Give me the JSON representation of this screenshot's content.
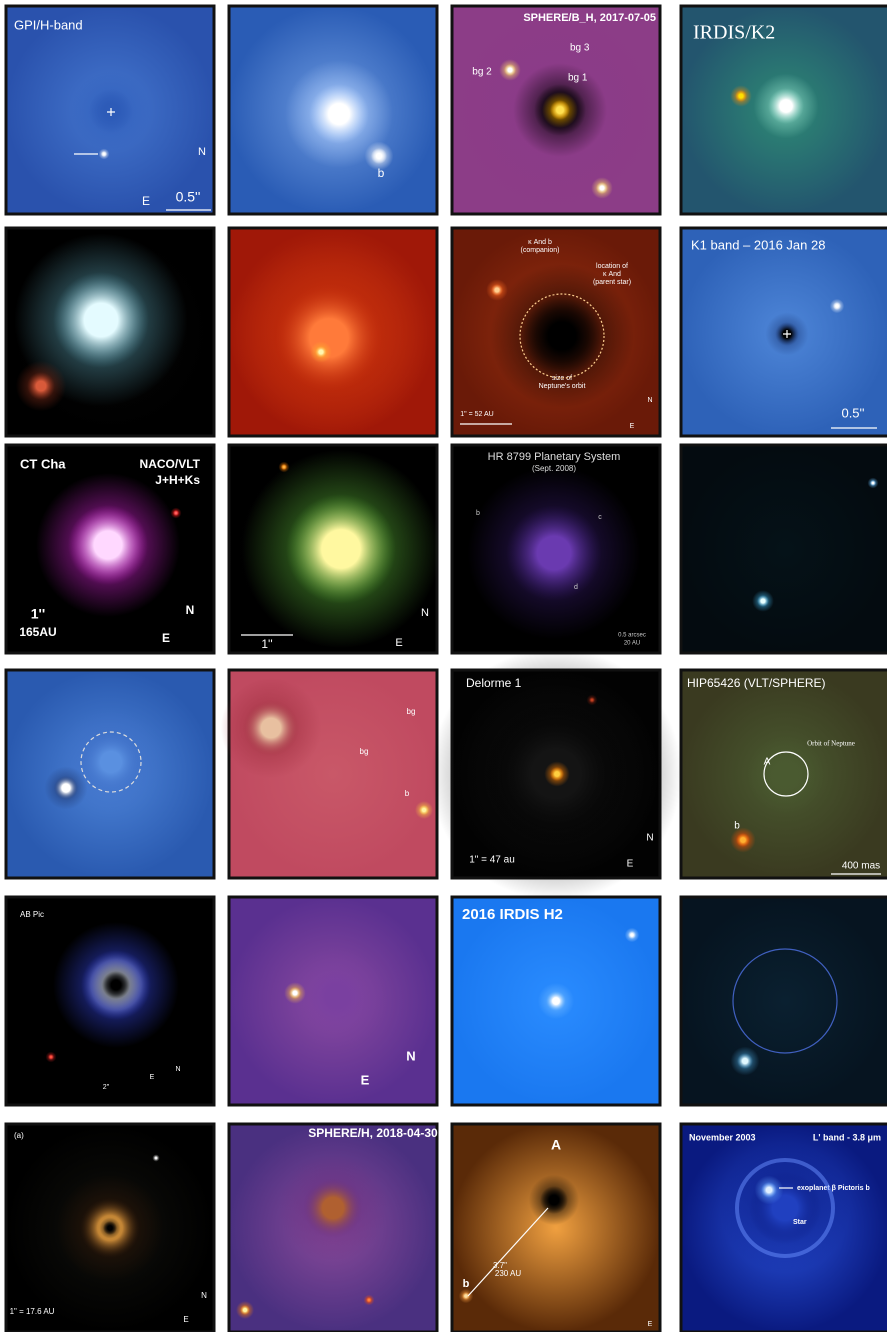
{
  "tiles": [
    {
      "labels": [
        "GPI/H-band",
        "N",
        "E",
        "0.5''"
      ]
    },
    {
      "labels": [
        "b"
      ]
    },
    {
      "labels": [
        "SPHERE/B_H, 2017-07-05",
        "bg 3",
        "bg 2",
        "bg 1"
      ]
    },
    {
      "labels": [
        "IRDIS/K2"
      ]
    },
    {
      "labels": []
    },
    {
      "labels": []
    },
    {
      "labels": [
        "κ And b",
        "(companion)",
        "location of",
        "κ And",
        "(parent star)",
        "size of",
        "Neptune's orbit",
        "1\" = 52 AU",
        "N",
        "E"
      ]
    },
    {
      "labels": [
        "K1 band – 2016 Jan 28",
        "0.5''"
      ]
    },
    {
      "labels": [
        "CT Cha",
        "NACO/VLT",
        "J+H+Ks",
        "1''",
        "165AU",
        "N",
        "E"
      ]
    },
    {
      "labels": [
        "1''",
        "N",
        "E"
      ]
    },
    {
      "labels": [
        "HR 8799 Planetary System",
        "(Sept. 2008)",
        "b",
        "c",
        "d",
        "0.5 arcsec",
        "20 AU"
      ]
    },
    {
      "labels": []
    },
    {
      "labels": []
    },
    {
      "labels": [
        "bg",
        "bg",
        "b"
      ]
    },
    {
      "labels": [
        "Delorme 1",
        "1\" = 47 au",
        "N",
        "E"
      ]
    },
    {
      "labels": [
        "HIP65426 (VLT/SPHERE)",
        "Orbit of Neptune",
        "A",
        "b",
        "400 mas"
      ]
    },
    {
      "labels": [
        "AB Pic",
        "2\"",
        "E",
        "N"
      ]
    },
    {
      "labels": [
        "N",
        "E"
      ]
    },
    {
      "labels": [
        "2016 IRDIS H2"
      ]
    },
    {
      "labels": []
    },
    {
      "labels": [
        "(a)",
        "1\" = 17.6 AU",
        "N",
        "E"
      ]
    },
    {
      "labels": [
        "SPHERE/H, 2018-04-30"
      ]
    },
    {
      "labels": [
        "A",
        "b",
        "3.7\"",
        "230 AU",
        "E"
      ]
    },
    {
      "labels": [
        "November 2003",
        "L' band - 3.8 μm",
        "exoplanet β Pictoris b",
        "Star"
      ]
    }
  ]
}
